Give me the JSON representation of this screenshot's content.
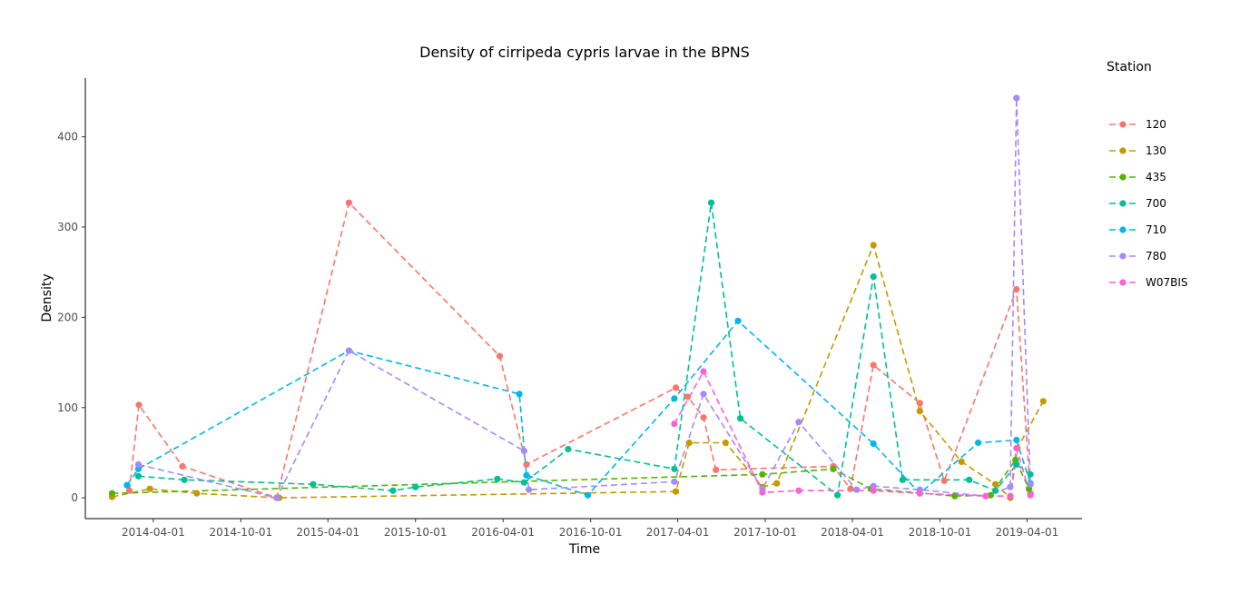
{
  "chart_data": {
    "type": "line",
    "title": "Density of cirripeda cypris larvae in the BPNS",
    "xlabel": "Time",
    "ylabel": "Density",
    "x_axis_type": "date",
    "xlim": [
      "2013-11-10",
      "2019-07-25"
    ],
    "ylim": [
      -23,
      465
    ],
    "x_ticks": [
      "2014-04-01",
      "2014-10-01",
      "2015-04-01",
      "2015-10-01",
      "2016-04-01",
      "2016-10-01",
      "2017-04-01",
      "2017-10-01",
      "2018-04-01",
      "2018-10-01",
      "2019-04-01"
    ],
    "y_ticks": [
      0,
      100,
      200,
      300,
      400
    ],
    "grid": false,
    "line_style": "dashed",
    "legend_title": "Station",
    "legend_position": "right",
    "series": [
      {
        "name": "120",
        "color": "#F8766D",
        "points": [
          {
            "x": "2014-02-10",
            "y": 8
          },
          {
            "x": "2014-03-02",
            "y": 103
          },
          {
            "x": "2014-06-01",
            "y": 35
          },
          {
            "x": "2014-12-15",
            "y": 0
          },
          {
            "x": "2015-05-15",
            "y": 327
          },
          {
            "x": "2016-03-25",
            "y": 157
          },
          {
            "x": "2016-05-20",
            "y": 37
          },
          {
            "x": "2017-03-28",
            "y": 122
          },
          {
            "x": "2017-04-22",
            "y": 112
          },
          {
            "x": "2017-05-25",
            "y": 89
          },
          {
            "x": "2017-06-20",
            "y": 31
          },
          {
            "x": "2018-02-20",
            "y": 35
          },
          {
            "x": "2018-03-28",
            "y": 10
          },
          {
            "x": "2018-05-15",
            "y": 147
          },
          {
            "x": "2018-08-20",
            "y": 105
          },
          {
            "x": "2018-10-10",
            "y": 19
          },
          {
            "x": "2019-03-10",
            "y": 231
          },
          {
            "x": "2019-04-08",
            "y": 5
          }
        ]
      },
      {
        "name": "130",
        "color": "#C49A00",
        "points": [
          {
            "x": "2014-01-05",
            "y": 1
          },
          {
            "x": "2014-03-25",
            "y": 10
          },
          {
            "x": "2014-07-01",
            "y": 5
          },
          {
            "x": "2014-12-20",
            "y": 0
          },
          {
            "x": "2017-03-28",
            "y": 7
          },
          {
            "x": "2017-04-25",
            "y": 61
          },
          {
            "x": "2017-07-10",
            "y": 61
          },
          {
            "x": "2017-09-25",
            "y": 12
          },
          {
            "x": "2017-10-25",
            "y": 16
          },
          {
            "x": "2018-05-15",
            "y": 280
          },
          {
            "x": "2018-08-20",
            "y": 96
          },
          {
            "x": "2018-11-15",
            "y": 40
          },
          {
            "x": "2019-01-25",
            "y": 15
          },
          {
            "x": "2019-02-25",
            "y": 0
          },
          {
            "x": "2019-03-12",
            "y": 55
          },
          {
            "x": "2019-05-05",
            "y": 107
          }
        ]
      },
      {
        "name": "435",
        "color": "#53B400",
        "points": [
          {
            "x": "2014-01-05",
            "y": 5
          },
          {
            "x": "2017-09-25",
            "y": 26
          },
          {
            "x": "2018-02-20",
            "y": 32
          },
          {
            "x": "2018-05-10",
            "y": 10
          },
          {
            "x": "2018-11-01",
            "y": 2
          },
          {
            "x": "2019-01-15",
            "y": 3
          },
          {
            "x": "2019-03-08",
            "y": 42
          },
          {
            "x": "2019-04-05",
            "y": 10
          }
        ]
      },
      {
        "name": "700",
        "color": "#00C094",
        "points": [
          {
            "x": "2014-03-01",
            "y": 24
          },
          {
            "x": "2014-06-05",
            "y": 20
          },
          {
            "x": "2015-03-01",
            "y": 15
          },
          {
            "x": "2015-08-15",
            "y": 8
          },
          {
            "x": "2015-10-01",
            "y": 12
          },
          {
            "x": "2016-03-20",
            "y": 21
          },
          {
            "x": "2016-05-15",
            "y": 17
          },
          {
            "x": "2016-08-15",
            "y": 54
          },
          {
            "x": "2017-03-25",
            "y": 32
          },
          {
            "x": "2017-06-10",
            "y": 327
          },
          {
            "x": "2017-08-10",
            "y": 88
          },
          {
            "x": "2018-03-01",
            "y": 3
          },
          {
            "x": "2018-05-15",
            "y": 245
          },
          {
            "x": "2018-07-15",
            "y": 20
          },
          {
            "x": "2018-12-01",
            "y": 20
          },
          {
            "x": "2019-01-25",
            "y": 8
          },
          {
            "x": "2019-03-10",
            "y": 37
          },
          {
            "x": "2019-04-08",
            "y": 26
          }
        ]
      },
      {
        "name": "710",
        "color": "#00B6EB",
        "points": [
          {
            "x": "2014-02-05",
            "y": 14
          },
          {
            "x": "2014-03-01",
            "y": 32
          },
          {
            "x": "2015-05-15",
            "y": 163
          },
          {
            "x": "2016-05-05",
            "y": 115
          },
          {
            "x": "2016-05-20",
            "y": 25
          },
          {
            "x": "2016-09-25",
            "y": 3
          },
          {
            "x": "2017-03-25",
            "y": 110
          },
          {
            "x": "2017-08-05",
            "y": 196
          },
          {
            "x": "2018-05-15",
            "y": 60
          },
          {
            "x": "2018-08-20",
            "y": 5
          },
          {
            "x": "2018-12-20",
            "y": 61
          },
          {
            "x": "2019-03-10",
            "y": 64
          },
          {
            "x": "2019-04-08",
            "y": 16
          }
        ]
      },
      {
        "name": "780",
        "color": "#A58AFF",
        "points": [
          {
            "x": "2014-03-01",
            "y": 37
          },
          {
            "x": "2014-12-15",
            "y": 0
          },
          {
            "x": "2015-05-15",
            "y": 163
          },
          {
            "x": "2016-05-15",
            "y": 52
          },
          {
            "x": "2016-05-25",
            "y": 9
          },
          {
            "x": "2017-03-25",
            "y": 18
          },
          {
            "x": "2017-05-25",
            "y": 115
          },
          {
            "x": "2017-09-25",
            "y": 10
          },
          {
            "x": "2017-12-10",
            "y": 84
          },
          {
            "x": "2018-04-10",
            "y": 9
          },
          {
            "x": "2018-05-15",
            "y": 13
          },
          {
            "x": "2018-08-20",
            "y": 9
          },
          {
            "x": "2019-01-05",
            "y": 2
          },
          {
            "x": "2019-02-25",
            "y": 12
          },
          {
            "x": "2019-03-10",
            "y": 443
          },
          {
            "x": "2019-04-08",
            "y": 15
          }
        ]
      },
      {
        "name": "W07BIS",
        "color": "#FB61D7",
        "points": [
          {
            "x": "2017-03-25",
            "y": 82
          },
          {
            "x": "2017-05-25",
            "y": 140
          },
          {
            "x": "2017-09-25",
            "y": 6
          },
          {
            "x": "2017-12-10",
            "y": 8
          },
          {
            "x": "2018-05-15",
            "y": 8
          },
          {
            "x": "2018-08-20",
            "y": 5
          },
          {
            "x": "2019-01-05",
            "y": 2
          },
          {
            "x": "2019-02-25",
            "y": 2
          },
          {
            "x": "2019-03-10",
            "y": 55
          },
          {
            "x": "2019-04-08",
            "y": 3
          }
        ]
      }
    ]
  }
}
